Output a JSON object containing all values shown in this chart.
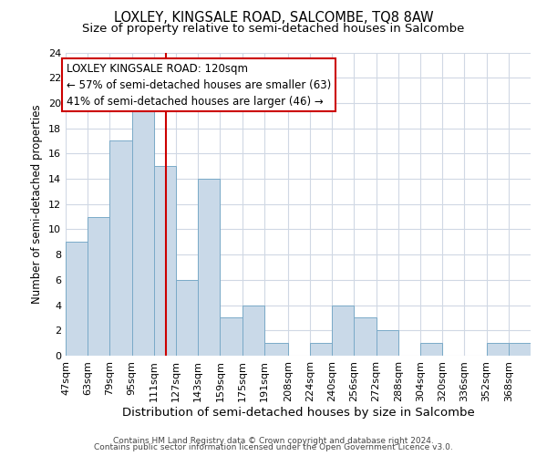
{
  "title": "LOXLEY, KINGSALE ROAD, SALCOMBE, TQ8 8AW",
  "subtitle": "Size of property relative to semi-detached houses in Salcombe",
  "xlabel": "Distribution of semi-detached houses by size in Salcombe",
  "ylabel": "Number of semi-detached properties",
  "bin_labels": [
    "47sqm",
    "63sqm",
    "79sqm",
    "95sqm",
    "111sqm",
    "127sqm",
    "143sqm",
    "159sqm",
    "175sqm",
    "191sqm",
    "208sqm",
    "224sqm",
    "240sqm",
    "256sqm",
    "272sqm",
    "288sqm",
    "304sqm",
    "320sqm",
    "336sqm",
    "352sqm",
    "368sqm"
  ],
  "bin_edges": [
    47,
    63,
    79,
    95,
    111,
    127,
    143,
    159,
    175,
    191,
    208,
    224,
    240,
    256,
    272,
    288,
    304,
    320,
    336,
    352,
    368,
    384
  ],
  "counts": [
    9,
    11,
    17,
    20,
    15,
    6,
    14,
    3,
    4,
    1,
    0,
    1,
    4,
    3,
    2,
    0,
    1,
    0,
    0,
    1,
    1
  ],
  "bar_facecolor": "#c9d9e8",
  "bar_edgecolor": "#7aaac8",
  "vline_x": 120,
  "vline_color": "#cc0000",
  "annotation_line1": "LOXLEY KINGSALE ROAD: 120sqm",
  "annotation_line2": "← 57% of semi-detached houses are smaller (63)",
  "annotation_line3": "41% of semi-detached houses are larger (46) →",
  "annotation_box_edgecolor": "#cc0000",
  "annotation_box_facecolor": "#ffffff",
  "ylim": [
    0,
    24
  ],
  "yticks": [
    0,
    2,
    4,
    6,
    8,
    10,
    12,
    14,
    16,
    18,
    20,
    22,
    24
  ],
  "footer1": "Contains HM Land Registry data © Crown copyright and database right 2024.",
  "footer2": "Contains public sector information licensed under the Open Government Licence v3.0.",
  "background_color": "#ffffff",
  "grid_color": "#d0d8e4",
  "title_fontsize": 10.5,
  "subtitle_fontsize": 9.5,
  "xlabel_fontsize": 9.5,
  "ylabel_fontsize": 8.5,
  "tick_fontsize": 8,
  "annotation_fontsize": 8.5,
  "footer_fontsize": 6.5
}
